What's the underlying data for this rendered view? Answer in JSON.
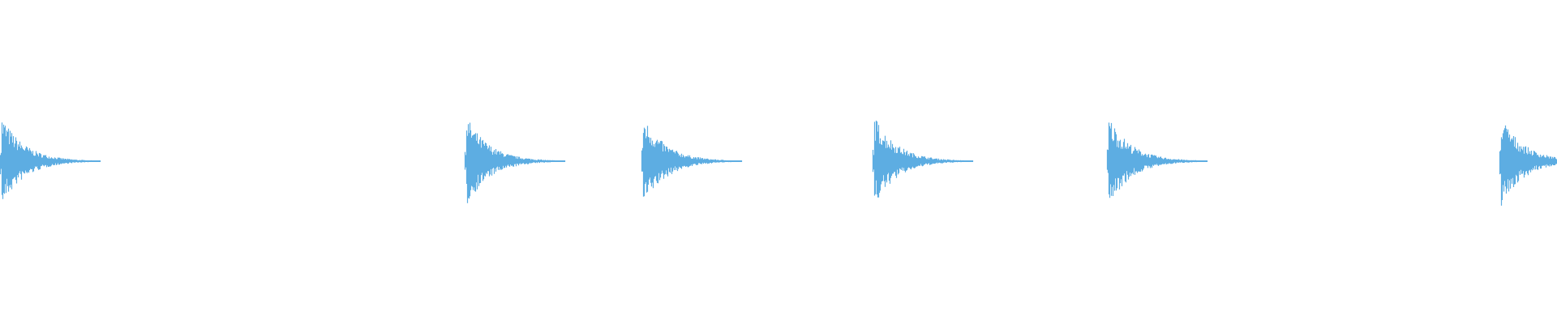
{
  "waveform": {
    "color": "#5dade2",
    "background": "#ffffff",
    "burst_count": 6,
    "burst_shape": "sharp attack, exponential decay"
  }
}
